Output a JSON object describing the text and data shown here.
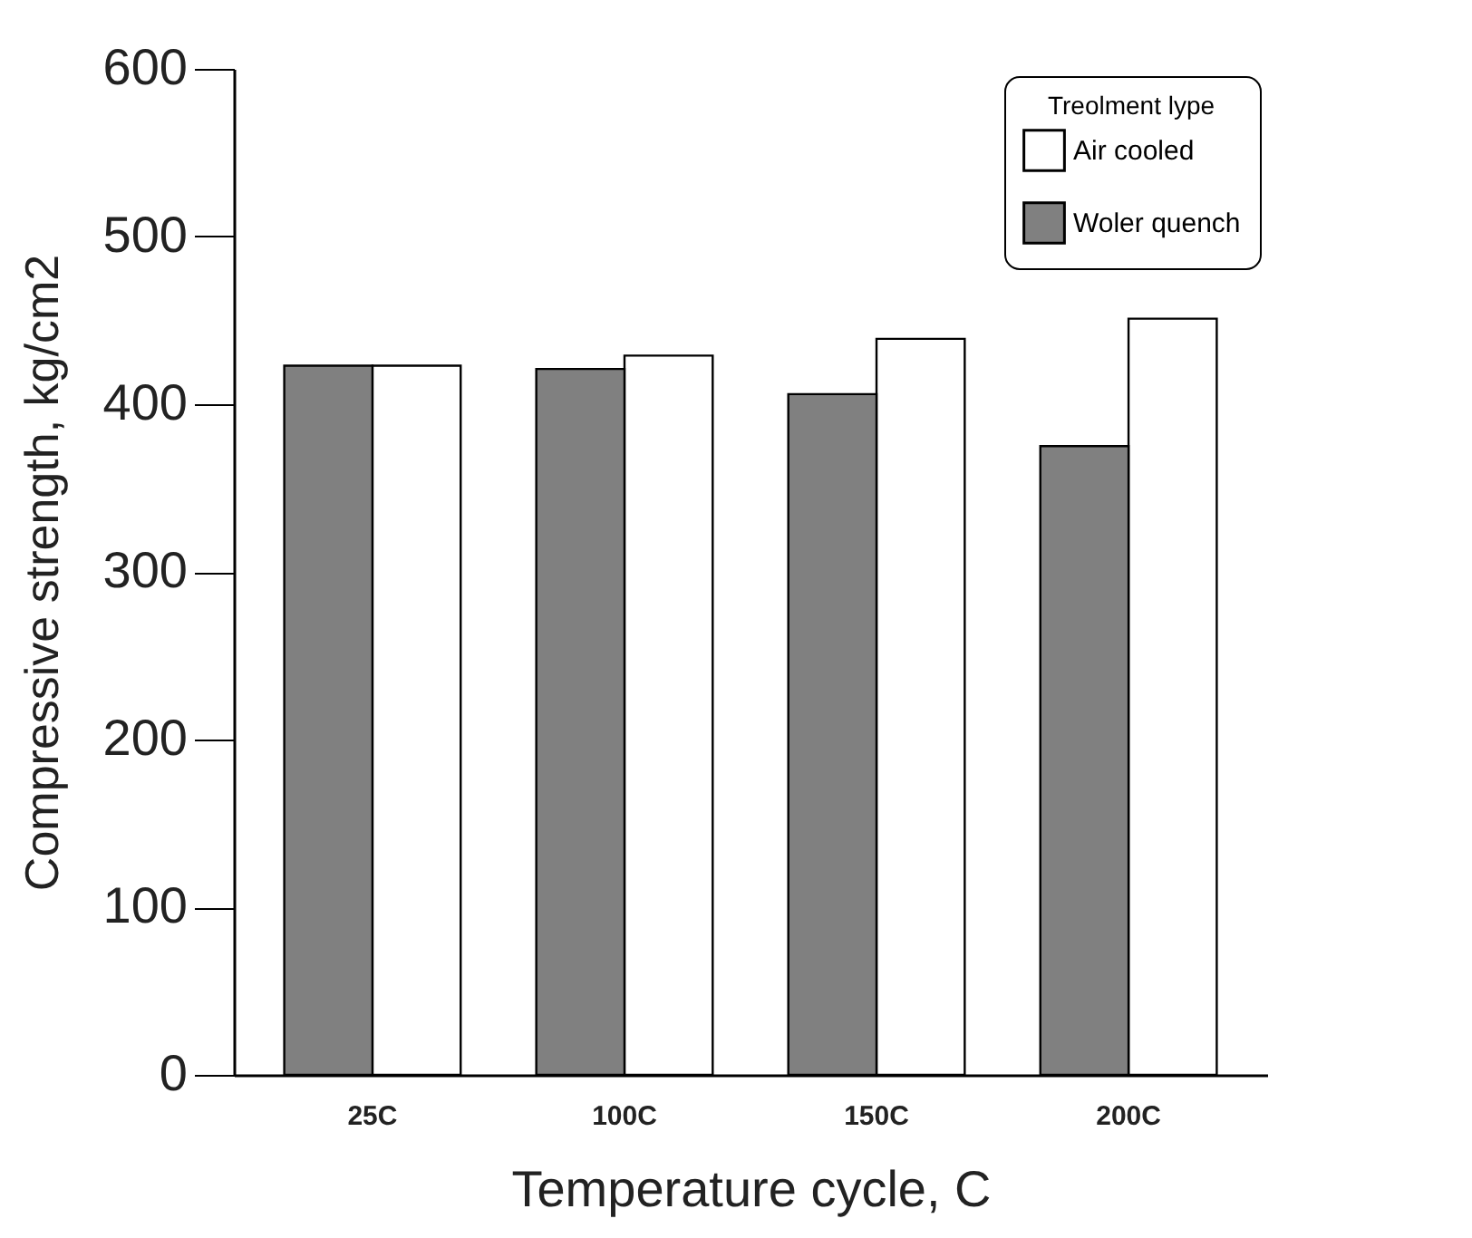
{
  "chart_data": {
    "type": "bar",
    "xlabel": "Temperature cycle, C",
    "ylabel": "Compressive strength, kg/cm2",
    "legend_title": "Treolment lype",
    "categories": [
      "25C",
      "100C",
      "150C",
      "200C"
    ],
    "series": [
      {
        "name": "Air cooled",
        "color": "#ffffff",
        "values": [
          423,
          429,
          439,
          451
        ]
      },
      {
        "name": "Woler quench",
        "color": "#808080",
        "values": [
          423,
          421,
          406,
          375
        ]
      }
    ],
    "ylim": [
      0,
      600
    ],
    "yticks": [
      0,
      100,
      200,
      300,
      400,
      500,
      600
    ],
    "grid": false,
    "legend": "top right"
  }
}
